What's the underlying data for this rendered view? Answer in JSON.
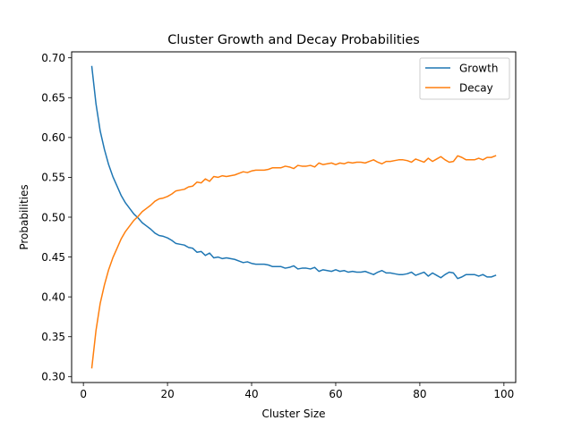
{
  "chart_data": {
    "type": "line",
    "title": "Cluster Growth and Decay Probabilities",
    "xlabel": "Cluster Size",
    "ylabel": "Probabilities",
    "xlim": [
      -2.8,
      102.8
    ],
    "ylim": [
      0.2925,
      0.7075
    ],
    "xticks": [
      0,
      20,
      40,
      60,
      80,
      100
    ],
    "xtick_labels": [
      "0",
      "20",
      "40",
      "60",
      "80",
      "100"
    ],
    "yticks": [
      0.3,
      0.35,
      0.4,
      0.45,
      0.5,
      0.55,
      0.6,
      0.65,
      0.7
    ],
    "ytick_labels": [
      "0.30",
      "0.35",
      "0.40",
      "0.45",
      "0.50",
      "0.55",
      "0.60",
      "0.65",
      "0.70"
    ],
    "grid": false,
    "legend": "top-right",
    "x": [
      2,
      3,
      4,
      5,
      6,
      7,
      8,
      9,
      10,
      11,
      12,
      13,
      14,
      15,
      16,
      17,
      18,
      19,
      20,
      21,
      22,
      23,
      24,
      25,
      26,
      27,
      28,
      29,
      30,
      31,
      32,
      33,
      34,
      35,
      36,
      37,
      38,
      39,
      40,
      41,
      42,
      43,
      44,
      45,
      46,
      47,
      48,
      49,
      50,
      51,
      52,
      53,
      54,
      55,
      56,
      57,
      58,
      59,
      60,
      61,
      62,
      63,
      64,
      65,
      66,
      67,
      68,
      69,
      70,
      71,
      72,
      73,
      74,
      75,
      76,
      77,
      78,
      79,
      80,
      81,
      82,
      83,
      84,
      85,
      86,
      87,
      88,
      89,
      90,
      91,
      92,
      93,
      94,
      95,
      96,
      97,
      98
    ],
    "series": [
      {
        "name": "Growth",
        "color": "#1f77b4",
        "values": [
          0.689,
          0.642,
          0.608,
          0.585,
          0.566,
          0.551,
          0.539,
          0.527,
          0.518,
          0.511,
          0.504,
          0.499,
          0.493,
          0.489,
          0.485,
          0.48,
          0.477,
          0.476,
          0.474,
          0.471,
          0.467,
          0.466,
          0.465,
          0.462,
          0.461,
          0.456,
          0.457,
          0.452,
          0.455,
          0.449,
          0.45,
          0.448,
          0.449,
          0.448,
          0.447,
          0.445,
          0.443,
          0.444,
          0.442,
          0.441,
          0.441,
          0.441,
          0.44,
          0.438,
          0.438,
          0.438,
          0.436,
          0.437,
          0.439,
          0.435,
          0.436,
          0.436,
          0.435,
          0.437,
          0.432,
          0.434,
          0.433,
          0.432,
          0.434,
          0.432,
          0.433,
          0.431,
          0.432,
          0.431,
          0.431,
          0.432,
          0.43,
          0.428,
          0.431,
          0.433,
          0.43,
          0.43,
          0.429,
          0.428,
          0.428,
          0.429,
          0.431,
          0.427,
          0.429,
          0.431,
          0.426,
          0.43,
          0.427,
          0.424,
          0.428,
          0.431,
          0.43,
          0.423,
          0.425,
          0.428,
          0.428,
          0.428,
          0.426,
          0.428,
          0.425,
          0.425,
          0.427
        ]
      },
      {
        "name": "Decay",
        "color": "#ff7f0e",
        "values": [
          0.311,
          0.358,
          0.392,
          0.415,
          0.434,
          0.449,
          0.461,
          0.473,
          0.482,
          0.489,
          0.496,
          0.501,
          0.507,
          0.511,
          0.515,
          0.52,
          0.523,
          0.524,
          0.526,
          0.529,
          0.533,
          0.534,
          0.535,
          0.538,
          0.539,
          0.544,
          0.543,
          0.548,
          0.545,
          0.551,
          0.55,
          0.552,
          0.551,
          0.552,
          0.553,
          0.555,
          0.557,
          0.556,
          0.558,
          0.559,
          0.559,
          0.559,
          0.56,
          0.562,
          0.562,
          0.562,
          0.564,
          0.563,
          0.561,
          0.565,
          0.564,
          0.564,
          0.565,
          0.563,
          0.568,
          0.566,
          0.567,
          0.568,
          0.566,
          0.568,
          0.567,
          0.569,
          0.568,
          0.569,
          0.569,
          0.568,
          0.57,
          0.572,
          0.569,
          0.567,
          0.57,
          0.57,
          0.571,
          0.572,
          0.572,
          0.571,
          0.569,
          0.573,
          0.571,
          0.569,
          0.574,
          0.57,
          0.573,
          0.576,
          0.572,
          0.569,
          0.57,
          0.577,
          0.575,
          0.572,
          0.572,
          0.572,
          0.574,
          0.572,
          0.575,
          0.575,
          0.577
        ]
      }
    ]
  }
}
